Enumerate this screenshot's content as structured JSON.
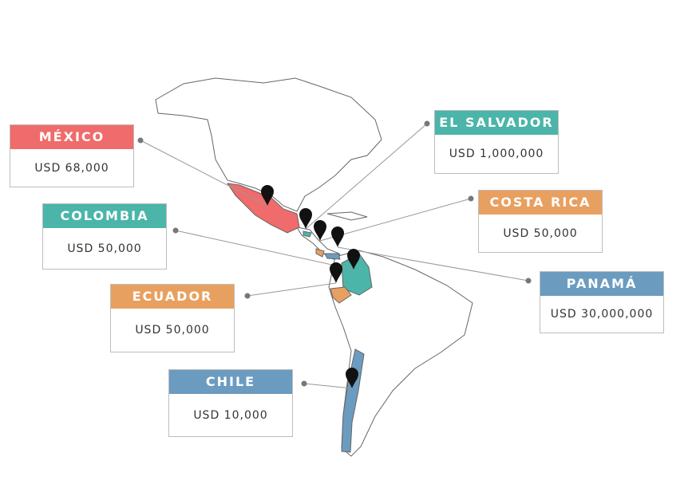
{
  "countries": [
    {
      "name": "MÉXICO",
      "amount": "USD 68,000"
    },
    {
      "name": "EL SALVADOR",
      "amount": "USD 1,000,000"
    },
    {
      "name": "COLOMBIA",
      "amount": "USD 50,000"
    },
    {
      "name": "COSTA RICA",
      "amount": "USD 50,000"
    },
    {
      "name": "ECUADOR",
      "amount": "USD 50,000"
    },
    {
      "name": "PANAMÁ",
      "amount": "USD 30,000,000"
    },
    {
      "name": "CHILE",
      "amount": "USD 10,000"
    }
  ]
}
